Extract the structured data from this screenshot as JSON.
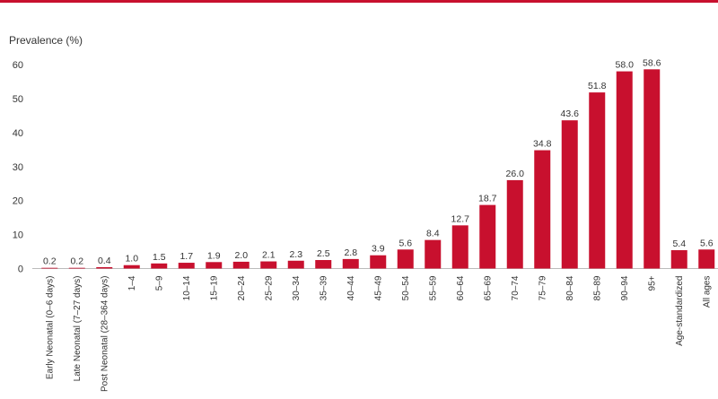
{
  "chart_data": {
    "type": "bar",
    "ylabel": "Prevalence (%)",
    "xlabel": "",
    "ylim": [
      0,
      60
    ],
    "yticks": [
      "0",
      "10",
      "20",
      "30",
      "40",
      "50",
      "60"
    ],
    "grid": false,
    "bar_color": "#c8102e",
    "categories": [
      "Early Neonatal (0–6 days)",
      "Late Neonatal (7–27 days)",
      "Post Neonatal (28–364 days)",
      "1–4",
      "5–9",
      "10–14",
      "15–19",
      "20–24",
      "25–29",
      "30–34",
      "35–39",
      "40–44",
      "45–49",
      "50–54",
      "55–59",
      "60–64",
      "65–69",
      "70–74",
      "75–79",
      "80–84",
      "85–89",
      "90–94",
      "95+",
      "Age-standardized",
      "All ages"
    ],
    "values": [
      0.2,
      0.2,
      0.4,
      1.0,
      1.5,
      1.7,
      1.9,
      2.0,
      2.1,
      2.3,
      2.5,
      2.8,
      3.9,
      5.6,
      8.4,
      12.7,
      18.7,
      26.0,
      34.8,
      43.6,
      51.8,
      58.0,
      58.6,
      5.4,
      5.6
    ],
    "labels": [
      "0.2",
      "0.2",
      "0.4",
      "1.0",
      "1.5",
      "1.7",
      "1.9",
      "2.0",
      "2.1",
      "2.3",
      "2.5",
      "2.8",
      "3.9",
      "5.6",
      "8.4",
      "12.7",
      "18.7",
      "26.0",
      "34.8",
      "43.6",
      "51.8",
      "58.0",
      "58.6",
      "5.4",
      "5.6"
    ]
  }
}
